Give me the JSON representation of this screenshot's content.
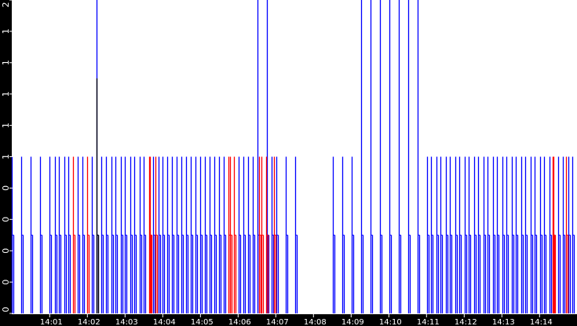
{
  "chart_data": {
    "type": "bar",
    "title": "",
    "xlabel": "",
    "ylabel": "",
    "xlim": [
      "14:00:00",
      "14:14:56"
    ],
    "ylim": [
      0,
      2
    ],
    "grid": false,
    "x_ticks": [
      "14:01",
      "14:02",
      "14:03",
      "14:04",
      "14:05",
      "14:06",
      "14:07",
      "14:08",
      "14:09",
      "14:10",
      "14:11",
      "14:12",
      "14:13",
      "14:14"
    ],
    "y_ticks": [
      {
        "value": 0,
        "label": "0"
      },
      {
        "value": 0.2,
        "label": "0"
      },
      {
        "value": 0.4,
        "label": "0"
      },
      {
        "value": 0.6,
        "label": "0"
      },
      {
        "value": 0.8,
        "label": "0"
      },
      {
        "value": 1.0,
        "label": "1"
      },
      {
        "value": 1.2,
        "label": "1"
      },
      {
        "value": 1.4,
        "label": "1"
      },
      {
        "value": 1.6,
        "label": "1"
      },
      {
        "value": 1.8,
        "label": "1"
      },
      {
        "value": 2.0,
        "label": "2"
      }
    ],
    "series": [
      {
        "color": "#0000ff",
        "points": [
          [
            "14:00:00",
            1
          ],
          [
            "14:00:15",
            1
          ],
          [
            "14:00:30",
            1
          ],
          [
            "14:00:45",
            1
          ],
          [
            "14:01:00",
            1
          ],
          [
            "14:01:08",
            1
          ],
          [
            "14:01:15",
            1
          ],
          [
            "14:01:23",
            1
          ],
          [
            "14:01:30",
            1
          ],
          [
            "14:01:45",
            1
          ],
          [
            "14:01:52",
            1
          ],
          [
            "14:02:07",
            1
          ],
          [
            "14:02:15",
            2
          ],
          [
            "14:02:22",
            1
          ],
          [
            "14:02:29",
            1
          ],
          [
            "14:02:38",
            1
          ],
          [
            "14:02:45",
            1
          ],
          [
            "14:02:53",
            1
          ],
          [
            "14:03:00",
            1
          ],
          [
            "14:03:08",
            1
          ],
          [
            "14:03:15",
            1
          ],
          [
            "14:03:23",
            1
          ],
          [
            "14:03:30",
            1
          ],
          [
            "14:03:45",
            1
          ],
          [
            "14:03:53",
            1
          ],
          [
            "14:04:00",
            1
          ],
          [
            "14:04:07",
            1
          ],
          [
            "14:04:15",
            1
          ],
          [
            "14:04:22",
            1
          ],
          [
            "14:04:30",
            1
          ],
          [
            "14:04:37",
            1
          ],
          [
            "14:04:45",
            1
          ],
          [
            "14:04:52",
            1
          ],
          [
            "14:05:00",
            1
          ],
          [
            "14:05:07",
            1
          ],
          [
            "14:05:15",
            1
          ],
          [
            "14:05:22",
            1
          ],
          [
            "14:05:30",
            1
          ],
          [
            "14:05:37",
            1
          ],
          [
            "14:06:01",
            1
          ],
          [
            "14:06:08",
            1
          ],
          [
            "14:06:16",
            1
          ],
          [
            "14:06:23",
            1
          ],
          [
            "14:06:31",
            2
          ],
          [
            "14:06:46",
            2
          ],
          [
            "14:06:53",
            1
          ],
          [
            "14:07:01",
            1
          ],
          [
            "14:07:16",
            1
          ],
          [
            "14:07:31",
            1
          ],
          [
            "14:08:31",
            1
          ],
          [
            "14:08:46",
            1
          ],
          [
            "14:09:01",
            1
          ],
          [
            "14:09:16",
            2
          ],
          [
            "14:09:31",
            2
          ],
          [
            "14:09:46",
            2
          ],
          [
            "14:10:01",
            2
          ],
          [
            "14:10:16",
            2
          ],
          [
            "14:10:31",
            2
          ],
          [
            "14:10:46",
            2
          ],
          [
            "14:11:01",
            1
          ],
          [
            "14:11:07",
            1
          ],
          [
            "14:11:16",
            1
          ],
          [
            "14:11:22",
            1
          ],
          [
            "14:11:31",
            1
          ],
          [
            "14:11:37",
            1
          ],
          [
            "14:11:46",
            1
          ],
          [
            "14:11:52",
            1
          ],
          [
            "14:12:01",
            1
          ],
          [
            "14:12:07",
            1
          ],
          [
            "14:12:16",
            1
          ],
          [
            "14:12:22",
            1
          ],
          [
            "14:12:31",
            1
          ],
          [
            "14:12:37",
            1
          ],
          [
            "14:12:46",
            1
          ],
          [
            "14:12:52",
            1
          ],
          [
            "14:13:01",
            1
          ],
          [
            "14:13:07",
            1
          ],
          [
            "14:13:16",
            1
          ],
          [
            "14:13:22",
            1
          ],
          [
            "14:13:31",
            1
          ],
          [
            "14:13:37",
            1
          ],
          [
            "14:13:46",
            1
          ],
          [
            "14:13:52",
            1
          ],
          [
            "14:14:01",
            1
          ],
          [
            "14:14:07",
            1
          ],
          [
            "14:14:16",
            1
          ],
          [
            "14:14:30",
            1
          ],
          [
            "14:14:37",
            1
          ],
          [
            "14:14:46",
            1
          ],
          [
            "14:14:52",
            1
          ]
        ]
      },
      {
        "color": "#ff0000",
        "points": [
          [
            "14:01:37",
            1
          ],
          [
            "14:01:59",
            1
          ],
          [
            "14:03:38",
            1
          ],
          [
            "14:03:40",
            1
          ],
          [
            "14:03:48",
            1
          ],
          [
            "14:05:45",
            1
          ],
          [
            "14:05:47",
            1
          ],
          [
            "14:05:53",
            1
          ],
          [
            "14:06:33",
            1
          ],
          [
            "14:06:37",
            1
          ],
          [
            "14:06:44",
            1
          ],
          [
            "14:06:57",
            1
          ],
          [
            "14:14:21",
            1
          ],
          [
            "14:14:22",
            1
          ],
          [
            "14:14:42",
            1
          ]
        ]
      },
      {
        "color": "#000000",
        "points": [
          [
            "14:02:15",
            1.5
          ]
        ]
      }
    ]
  }
}
